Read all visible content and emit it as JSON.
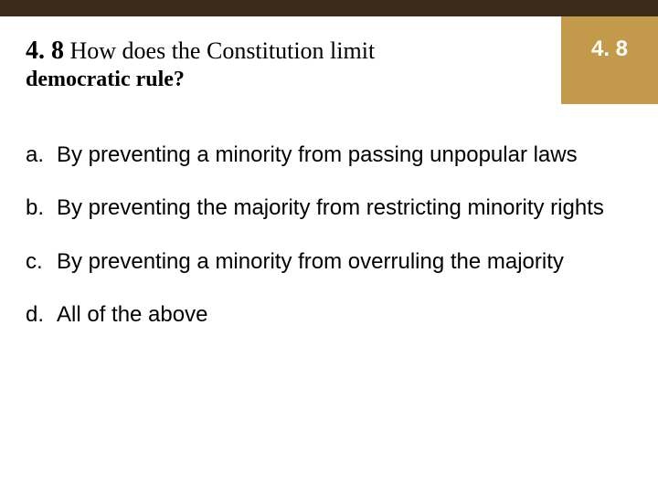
{
  "colors": {
    "top_bar": "#3a2a1a",
    "badge_bg": "#c39a4b",
    "badge_text": "#ffffff",
    "text": "#000000"
  },
  "header": {
    "number": "4. 8",
    "line1": " How does the Constitution limit",
    "line2": "democratic rule?",
    "badge": "4. 8"
  },
  "answers": [
    {
      "letter": "a.",
      "text": "By preventing a minority from passing unpopular laws"
    },
    {
      "letter": "b.",
      "text": "By preventing the majority from restricting minority rights"
    },
    {
      "letter": "c.",
      "text": "By preventing a minority from overruling the majority"
    },
    {
      "letter": "d.",
      "text": "All of the above"
    }
  ]
}
